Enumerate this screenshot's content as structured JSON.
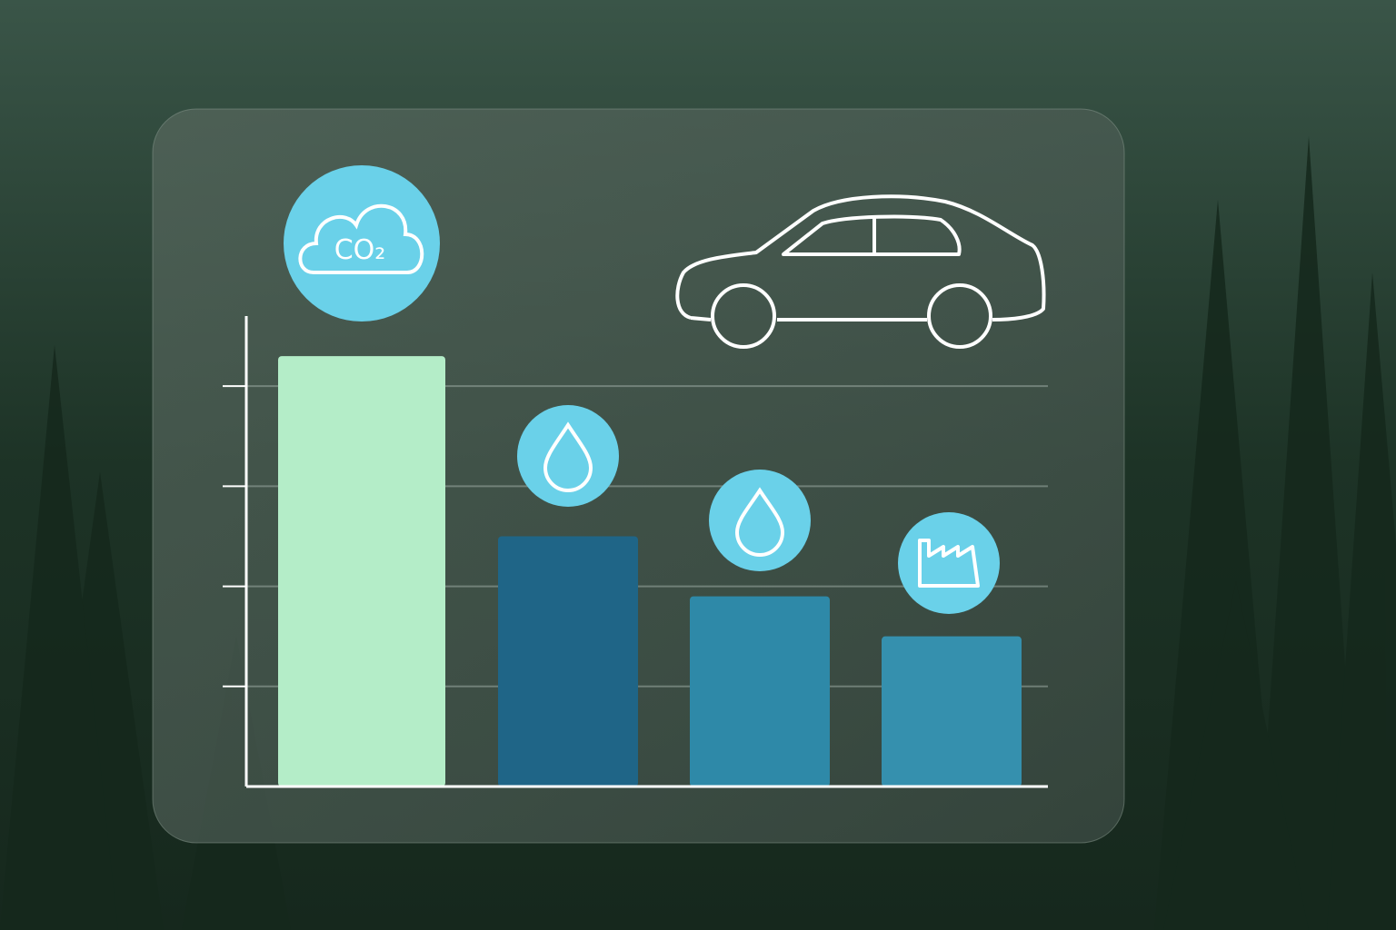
{
  "chart_data": {
    "type": "bar",
    "categories": [
      null,
      null,
      null,
      null
    ],
    "values": [
      4.3,
      2.5,
      1.9,
      1.5
    ],
    "colors": [
      "#b4edc8",
      "#1f6587",
      "#2e89a8",
      "#3590ae"
    ],
    "ylim": [
      0,
      4.7
    ],
    "yticks": [
      1,
      2,
      3,
      4
    ],
    "grid": true,
    "annotations": [
      "CO₂"
    ]
  }
}
